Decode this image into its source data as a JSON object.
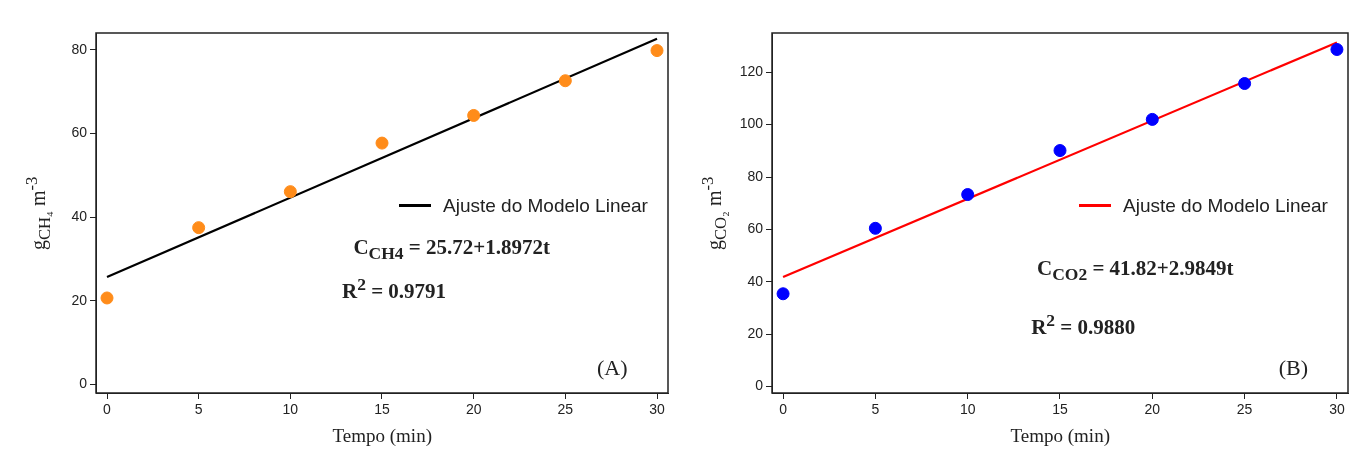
{
  "chart_data": [
    {
      "type": "scatter",
      "xlabel": "Tempo (min)",
      "ylabel": "g$_{CH₄}$ m$^{-3}$",
      "xlim": [
        -0.6,
        30.6
      ],
      "ylim": [
        -2,
        84
      ],
      "xticks": [
        0,
        5,
        10,
        15,
        20,
        25,
        30
      ],
      "yticks": [
        0,
        20,
        40,
        60,
        80
      ],
      "grid": false,
      "legend": "right",
      "annotations": [
        "C$_{CH4}$ = 25.72+1.8972t",
        "R$^{2}$ = 0.9791",
        "(A)"
      ],
      "series": [
        {
          "type": "scatter",
          "marker": "circle",
          "color": "#ff8c1a",
          "x": [
            0,
            5,
            10,
            15,
            20,
            25,
            30
          ],
          "values": [
            20.7,
            37.5,
            46.1,
            57.7,
            64.3,
            72.6,
            79.8
          ]
        },
        {
          "type": "line",
          "name": "Ajuste do Modelo Linear",
          "color": "#000000",
          "line_style": "solid",
          "x": [
            0,
            30
          ],
          "values": [
            25.7,
            82.6
          ]
        }
      ]
    },
    {
      "type": "scatter",
      "xlabel": "Tempo (min)",
      "ylabel": "g$_{CO₂}$ m$^{-3}$",
      "xlim": [
        -0.6,
        30.6
      ],
      "ylim": [
        -2.5,
        135
      ],
      "xticks": [
        0,
        5,
        10,
        15,
        20,
        25,
        30
      ],
      "yticks": [
        0,
        20,
        40,
        60,
        80,
        100,
        120
      ],
      "grid": false,
      "legend": "right",
      "annotations": [
        "C$_{CO2}$ = 41.82+2.9849t",
        "R$^{2}$ = 0.9880",
        "(B)"
      ],
      "series": [
        {
          "type": "scatter",
          "marker": "circle",
          "color": "#0000ff",
          "x": [
            0,
            5,
            10,
            15,
            20,
            25,
            30
          ],
          "values": [
            35.4,
            60.4,
            73.3,
            90.1,
            102,
            115.7,
            128.7
          ]
        },
        {
          "type": "line",
          "name": "Ajuste do Modelo Linear",
          "color": "#ff0000",
          "line_style": "solid",
          "x": [
            0,
            30
          ],
          "values": [
            41.8,
            131.4
          ]
        }
      ]
    }
  ]
}
